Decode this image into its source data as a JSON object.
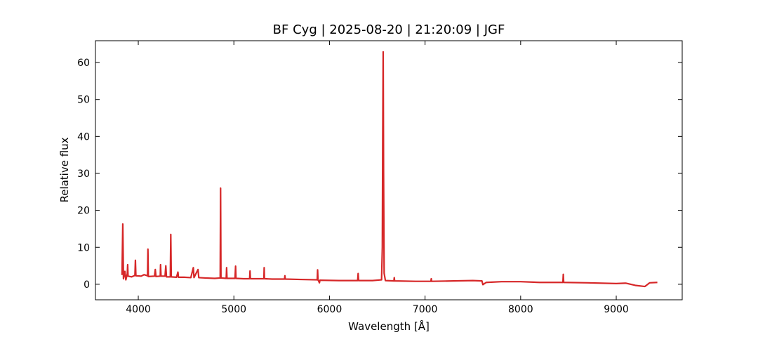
{
  "chart_data": {
    "type": "line",
    "title": "BF Cyg | 2025-08-20 | 21:20:09 | JGF",
    "xlabel": "Wavelength [Å]",
    "ylabel": "Relative flux",
    "color": "#d62728",
    "x": [
      3830,
      3838,
      3845,
      3860,
      3870,
      3885,
      3889,
      3893,
      3930,
      3965,
      3970,
      3975,
      4030,
      4060,
      4097,
      4101,
      4105,
      4170,
      4178,
      4185,
      4230,
      4233,
      4238,
      4280,
      4288,
      4295,
      4335,
      4340,
      4345,
      4400,
      4415,
      4420,
      4480,
      4550,
      4576,
      4583,
      4625,
      4633,
      4700,
      4800,
      4857,
      4861,
      4865,
      4920,
      4924,
      4928,
      5012,
      5018,
      5022,
      5100,
      5165,
      5169,
      5173,
      5270,
      5314,
      5317,
      5320,
      5400,
      5530,
      5534,
      5538,
      5700,
      5872,
      5876,
      5880,
      5895,
      5900,
      6100,
      6295,
      6300,
      6305,
      6450,
      6545,
      6553,
      6557,
      6562,
      6566,
      6572,
      6585,
      6674,
      6678,
      6682,
      6900,
      7061,
      7065,
      7069,
      7300,
      7500,
      7595,
      7605,
      7640,
      7800,
      8000,
      8200,
      8442,
      8446,
      8450,
      8700,
      9000,
      9100,
      9200,
      9300,
      9350,
      9430
    ],
    "values": [
      2.5,
      16.3,
      1.5,
      3.5,
      1.2,
      2.8,
      5.3,
      2.2,
      2.0,
      2.4,
      6.5,
      2.3,
      2.2,
      2.6,
      2.3,
      9.5,
      2.1,
      2.2,
      4.0,
      2.1,
      2.2,
      5.3,
      2.2,
      2.2,
      5.0,
      2.0,
      2.0,
      13.5,
      2.0,
      1.9,
      3.3,
      1.9,
      1.9,
      1.8,
      4.5,
      1.8,
      4.0,
      1.8,
      1.7,
      1.6,
      1.7,
      26.0,
      1.7,
      1.6,
      4.5,
      1.6,
      1.6,
      4.9,
      1.6,
      1.5,
      1.5,
      3.6,
      1.5,
      1.5,
      1.5,
      4.5,
      1.5,
      1.4,
      1.4,
      2.3,
      1.4,
      1.3,
      1.2,
      3.9,
      1.2,
      0.4,
      1.1,
      1.0,
      1.0,
      2.9,
      1.0,
      1.0,
      1.2,
      10,
      38,
      62.9,
      30,
      3,
      1.0,
      0.9,
      1.8,
      0.9,
      0.8,
      0.8,
      1.5,
      0.8,
      0.9,
      1.0,
      0.9,
      -0.1,
      0.5,
      0.7,
      0.7,
      0.5,
      0.5,
      2.7,
      0.5,
      0.4,
      0.2,
      0.3,
      -0.3,
      -0.6,
      0.4,
      0.5
    ],
    "xlim": [
      3552,
      9690
    ],
    "ylim": [
      -4.2,
      65.9
    ],
    "xticks": [
      4000,
      5000,
      6000,
      7000,
      8000,
      9000
    ],
    "yticks": [
      0,
      10,
      20,
      30,
      40,
      50,
      60
    ]
  }
}
